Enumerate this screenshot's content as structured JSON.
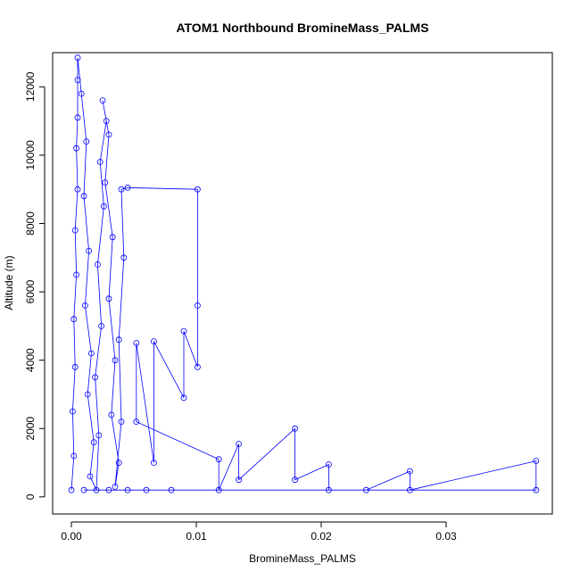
{
  "chart_data": {
    "type": "scatter",
    "title": "ATOM1 Northbound BromineMass_PALMS",
    "xlabel": "BromineMass_PALMS",
    "ylabel": "Altitude (m)",
    "xlim": [
      -0.0015,
      0.0385
    ],
    "ylim": [
      -500,
      13000
    ],
    "xticks": [
      0,
      0.01,
      0.02,
      0.03
    ],
    "xtick_labels": [
      "0.00",
      "0.01",
      "0.02",
      "0.03"
    ],
    "yticks": [
      0,
      2000,
      4000,
      6000,
      8000,
      10000,
      12000
    ],
    "ytick_labels": [
      "0",
      "2000",
      "4000",
      "6000",
      "8000",
      "10000",
      "12000"
    ],
    "grid": false,
    "legend": "none",
    "color": "#0000ff",
    "marker": "open-circle-with-lines",
    "series": [
      {
        "points": [
          [
            0.0,
            200
          ],
          [
            0.0002,
            1200
          ],
          [
            0.0001,
            2500
          ],
          [
            0.0003,
            3800
          ],
          [
            0.0002,
            5200
          ],
          [
            0.0004,
            6500
          ],
          [
            0.0003,
            7800
          ],
          [
            0.0005,
            9000
          ],
          [
            0.0004,
            10200
          ],
          [
            0.0005,
            11100
          ],
          [
            0.0005,
            12200
          ],
          [
            0.0005,
            12850
          ],
          [
            0.0008,
            11800
          ],
          [
            0.0012,
            10400
          ],
          [
            0.001,
            8800
          ],
          [
            0.0014,
            7200
          ],
          [
            0.0011,
            5600
          ],
          [
            0.0016,
            4200
          ],
          [
            0.0013,
            3000
          ],
          [
            0.0018,
            1600
          ],
          [
            0.0015,
            600
          ],
          [
            0.002,
            200
          ],
          [
            0.0022,
            1800
          ],
          [
            0.0019,
            3500
          ],
          [
            0.0024,
            5000
          ],
          [
            0.0021,
            6800
          ],
          [
            0.0026,
            8500
          ],
          [
            0.0023,
            9800
          ],
          [
            0.0028,
            11000
          ],
          [
            0.0025,
            11600
          ],
          [
            0.003,
            10600
          ],
          [
            0.0027,
            9200
          ],
          [
            0.0033,
            7600
          ],
          [
            0.003,
            5800
          ],
          [
            0.0035,
            4000
          ],
          [
            0.0032,
            2400
          ],
          [
            0.0038,
            1000
          ],
          [
            0.0035,
            300
          ],
          [
            0.004,
            2200
          ],
          [
            0.0038,
            4600
          ],
          [
            0.0042,
            7000
          ],
          [
            0.004,
            9000
          ],
          [
            0.0045,
            9050
          ],
          [
            0.0101,
            9000
          ],
          [
            0.0101,
            5600
          ],
          [
            0.0101,
            3800
          ],
          [
            0.009,
            4850
          ],
          [
            0.009,
            2900
          ],
          [
            0.0066,
            4550
          ],
          [
            0.0066,
            1000
          ],
          [
            0.0052,
            4500
          ],
          [
            0.0052,
            2200
          ],
          [
            0.0118,
            1100
          ],
          [
            0.0118,
            200
          ],
          [
            0.0134,
            1550
          ],
          [
            0.0134,
            500
          ],
          [
            0.0179,
            2000
          ],
          [
            0.0179,
            500
          ],
          [
            0.0206,
            950
          ],
          [
            0.0206,
            200
          ],
          [
            0.0236,
            200
          ],
          [
            0.0271,
            750
          ],
          [
            0.0271,
            200
          ],
          [
            0.0372,
            1050
          ],
          [
            0.0372,
            200
          ],
          [
            0.008,
            200
          ],
          [
            0.006,
            200
          ],
          [
            0.0045,
            200
          ],
          [
            0.003,
            200
          ],
          [
            0.001,
            200
          ]
        ]
      }
    ]
  }
}
